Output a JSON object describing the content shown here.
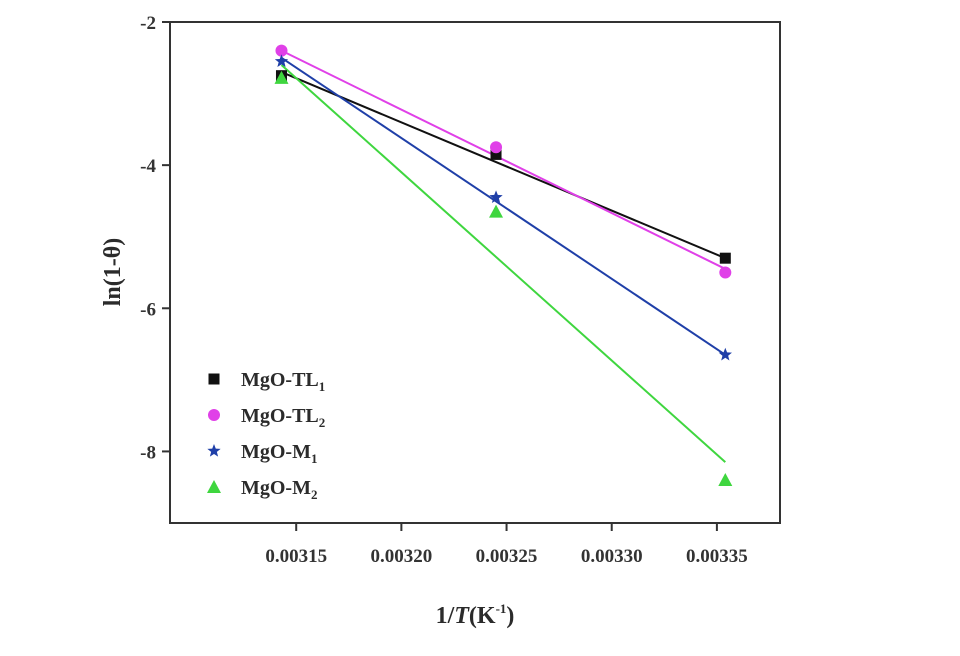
{
  "chart_data": {
    "type": "scatter",
    "title": "",
    "xlabel": {
      "pre": "1/",
      "italic": "T",
      "post": "(K",
      "sup": "-1",
      "close": ")"
    },
    "ylabel": "ln(1-θ)",
    "xlim": [
      0.00309,
      0.00338
    ],
    "ylim": [
      -9.0,
      -2.0
    ],
    "x_ticks": [
      0.00315,
      0.0032,
      0.00325,
      0.0033,
      0.00335
    ],
    "x_tick_labels": [
      "0.00315",
      "0.00320",
      "0.00325",
      "0.00330",
      "0.00335"
    ],
    "y_ticks": [
      -2,
      -4,
      -6,
      -8
    ],
    "y_tick_labels": [
      "-2",
      "-4",
      "-6",
      "-8"
    ],
    "legend_position": "bottom-left",
    "grid": false,
    "series": [
      {
        "name": "MgO-TL",
        "sub": "1",
        "marker": "square",
        "color": "#111111",
        "x": [
          0.003143,
          0.003245,
          0.003354
        ],
        "y": [
          -2.75,
          -3.85,
          -5.3
        ],
        "fit": [
          [
            0.003143,
            -2.7
          ],
          [
            0.003354,
            -5.3
          ]
        ]
      },
      {
        "name": "MgO-TL",
        "sub": "2",
        "marker": "circle",
        "color": "#e040e8",
        "x": [
          0.003143,
          0.003245,
          0.003354
        ],
        "y": [
          -2.4,
          -3.75,
          -5.5
        ],
        "fit": [
          [
            0.003143,
            -2.4
          ],
          [
            0.003354,
            -5.45
          ]
        ]
      },
      {
        "name": "MgO-M",
        "sub": "1",
        "marker": "star",
        "color": "#1f3fa8",
        "x": [
          0.003143,
          0.003245,
          0.003354
        ],
        "y": [
          -2.55,
          -4.45,
          -6.65
        ],
        "fit": [
          [
            0.003143,
            -2.5
          ],
          [
            0.003354,
            -6.65
          ]
        ]
      },
      {
        "name": "MgO-M",
        "sub": "2",
        "marker": "triangle",
        "color": "#3fd63f",
        "x": [
          0.003143,
          0.003245,
          0.003354
        ],
        "y": [
          -2.78,
          -4.65,
          -8.4
        ],
        "fit": [
          [
            0.003143,
            -2.6
          ],
          [
            0.003354,
            -8.15
          ]
        ]
      }
    ]
  }
}
